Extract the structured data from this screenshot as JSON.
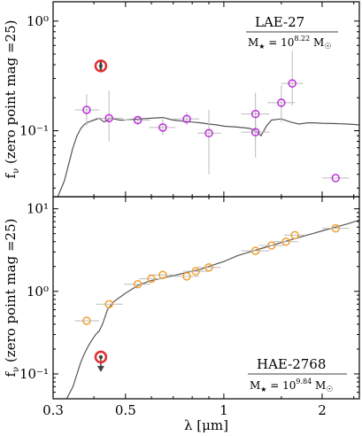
{
  "figure": {
    "xlabel": "λ [μm]",
    "ylabel": "f",
    "ylabel_sub": "ν",
    "ylabel_rest": " (zero point mag =25)"
  },
  "chart_data": [
    {
      "type": "scatter",
      "panel": "top",
      "title": "LAE-27",
      "mass_label": "M★ = 10^8.22 M☉",
      "mass_prefix": "M",
      "mass_star": "★",
      "mass_mid": " = 10",
      "mass_exp": "8.22",
      "mass_unit": " M",
      "mass_sun": "☉",
      "xlabel": "λ [μm]",
      "ylabel": "fν (zero point mag =25)",
      "xscale": "log",
      "yscale": "log",
      "xlim": [
        0.3,
        2.6
      ],
      "ylim": [
        0.025,
        1.5
      ],
      "x_ticks": [
        0.3,
        0.5,
        1,
        2
      ],
      "y_ticks": [
        {
          "value": 0.1,
          "label": "10⁻¹"
        },
        {
          "value": 1.0,
          "label": "10⁰"
        }
      ],
      "marker_color": "#bf2fdc",
      "photometry": [
        {
          "x": 0.38,
          "y": 0.155,
          "xerr": [
            0.03,
            0.035
          ],
          "yerr": [
            0.045,
            0.06
          ]
        },
        {
          "x": 0.445,
          "y": 0.13,
          "xerr": [
            0.04,
            0.045
          ],
          "yerr": [
            0.05,
            0.1
          ]
        },
        {
          "x": 0.545,
          "y": 0.125,
          "xerr": [
            0.05,
            0.05
          ],
          "yerr": [
            0.012,
            0.012
          ]
        },
        {
          "x": 0.65,
          "y": 0.107,
          "xerr": [
            0.06,
            0.06
          ],
          "yerr": [
            0.015,
            0.02
          ]
        },
        {
          "x": 0.77,
          "y": 0.128,
          "xerr": [
            0.07,
            0.07
          ],
          "yerr": [
            0.015,
            0.02
          ]
        },
        {
          "x": 0.9,
          "y": 0.095,
          "xerr": [
            0.07,
            0.08
          ],
          "yerr": [
            0.055,
            0.06
          ]
        },
        {
          "x": 1.25,
          "y": 0.097,
          "xerr": [
            0.12,
            0.13
          ],
          "yerr": [
            0.04,
            0.05
          ]
        },
        {
          "x": 1.25,
          "y": 0.142,
          "xerr": [
            0.12,
            0.13
          ],
          "yerr": [
            0.06,
            0.08
          ]
        },
        {
          "x": 1.5,
          "y": 0.18,
          "xerr": [
            0.14,
            0.15
          ],
          "yerr": [
            0.06,
            0.08
          ]
        },
        {
          "x": 1.62,
          "y": 0.27,
          "xerr": [
            0.12,
            0.13
          ],
          "yerr": [
            0.1,
            0.27
          ]
        },
        {
          "x": 2.2,
          "y": 0.037,
          "xerr": [
            0.2,
            0.22
          ],
          "yerr": [
            0.0,
            0.0
          ]
        }
      ],
      "highlight": {
        "x": 0.42,
        "y": 0.39,
        "yerr": [
          0.04,
          0.04
        ],
        "color": "#e03030"
      },
      "sed_model": {
        "color": "#555555",
        "x": [
          0.31,
          0.325,
          0.335,
          0.345,
          0.355,
          0.365,
          0.375,
          0.385,
          0.4,
          0.415,
          0.43,
          0.45,
          0.48,
          0.5,
          0.55,
          0.6,
          0.65,
          0.7,
          0.75,
          0.8,
          0.85,
          0.9,
          0.95,
          1.0,
          1.1,
          1.2,
          1.25,
          1.3,
          1.35,
          1.4,
          1.5,
          1.6,
          1.7,
          1.8,
          1.9,
          2.0,
          2.2,
          2.4,
          2.6
        ],
        "y": [
          0.025,
          0.035,
          0.05,
          0.07,
          0.09,
          0.105,
          0.115,
          0.12,
          0.125,
          0.13,
          0.12,
          0.13,
          0.125,
          0.125,
          0.128,
          0.13,
          0.132,
          0.125,
          0.122,
          0.12,
          0.118,
          0.115,
          0.113,
          0.11,
          0.108,
          0.105,
          0.1,
          0.09,
          0.11,
          0.125,
          0.128,
          0.12,
          0.115,
          0.118,
          0.118,
          0.117,
          0.116,
          0.115,
          0.113
        ]
      }
    },
    {
      "type": "scatter",
      "panel": "bottom",
      "title": "HAE-2768",
      "mass_label": "M★ = 10^9.84 M☉",
      "mass_prefix": "M",
      "mass_star": "★",
      "mass_mid": " = 10",
      "mass_exp": "9.84",
      "mass_unit": " M",
      "mass_sun": "☉",
      "xlabel": "λ [μm]",
      "ylabel": "fν (zero point mag =25)",
      "xscale": "log",
      "yscale": "log",
      "xlim": [
        0.3,
        2.6
      ],
      "ylim": [
        0.05,
        14
      ],
      "x_ticks": [
        0.3,
        0.5,
        1,
        2
      ],
      "y_ticks": [
        {
          "value": 0.1,
          "label": "10⁻¹"
        },
        {
          "value": 1.0,
          "label": "10⁰"
        },
        {
          "value": 10.0,
          "label": "10¹"
        }
      ],
      "marker_color": "#f0a030",
      "photometry": [
        {
          "x": 0.38,
          "y": 0.44,
          "xerr": [
            0.03,
            0.035
          ]
        },
        {
          "x": 0.445,
          "y": 0.7,
          "xerr": [
            0.04,
            0.045
          ]
        },
        {
          "x": 0.545,
          "y": 1.22,
          "xerr": [
            0.05,
            0.05
          ]
        },
        {
          "x": 0.6,
          "y": 1.42,
          "xerr": [
            0.05,
            0.05
          ]
        },
        {
          "x": 0.65,
          "y": 1.58,
          "xerr": [
            0.06,
            0.06
          ]
        },
        {
          "x": 0.77,
          "y": 1.52,
          "xerr": [
            0.07,
            0.07
          ]
        },
        {
          "x": 0.82,
          "y": 1.75,
          "xerr": [
            0.07,
            0.08
          ]
        },
        {
          "x": 0.9,
          "y": 1.95,
          "xerr": [
            0.07,
            0.08
          ]
        },
        {
          "x": 1.25,
          "y": 3.1,
          "xerr": [
            0.12,
            0.13
          ]
        },
        {
          "x": 1.4,
          "y": 3.6,
          "xerr": [
            0.12,
            0.13
          ]
        },
        {
          "x": 1.55,
          "y": 4.0,
          "xerr": [
            0.13,
            0.14
          ]
        },
        {
          "x": 1.65,
          "y": 4.8,
          "xerr": [
            0.12,
            0.13
          ]
        },
        {
          "x": 2.2,
          "y": 5.8,
          "xerr": [
            0.2,
            0.22
          ]
        }
      ],
      "highlight": {
        "x": 0.42,
        "y": 0.16,
        "upper_limit": true,
        "color": "#e03030"
      },
      "sed_model": {
        "color": "#555555",
        "x": [
          0.33,
          0.345,
          0.355,
          0.365,
          0.375,
          0.385,
          0.395,
          0.405,
          0.415,
          0.425,
          0.44,
          0.46,
          0.5,
          0.55,
          0.6,
          0.65,
          0.7,
          0.75,
          0.8,
          0.85,
          0.9,
          1.0,
          1.1,
          1.2,
          1.3,
          1.4,
          1.5,
          1.6,
          1.7,
          1.8,
          1.9,
          2.0,
          2.2,
          2.4,
          2.6
        ],
        "y": [
          0.05,
          0.07,
          0.1,
          0.14,
          0.18,
          0.22,
          0.26,
          0.3,
          0.33,
          0.4,
          0.6,
          0.75,
          0.95,
          1.2,
          1.35,
          1.45,
          1.55,
          1.65,
          1.75,
          1.85,
          2.0,
          2.3,
          2.7,
          3.0,
          3.3,
          3.6,
          3.9,
          4.2,
          4.5,
          4.8,
          5.1,
          5.4,
          6.0,
          6.6,
          7.3
        ]
      }
    }
  ]
}
